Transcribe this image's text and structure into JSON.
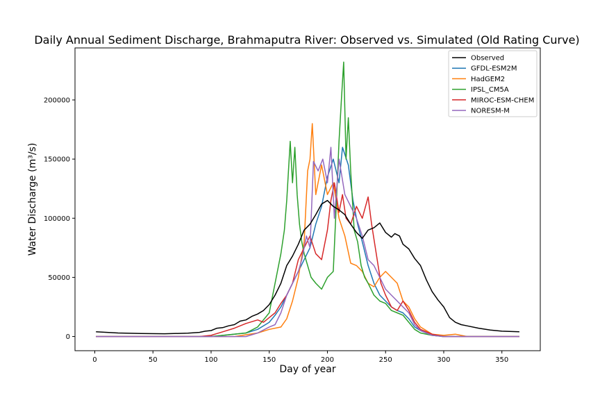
{
  "chart_data": {
    "type": "line",
    "title": "Daily Annual Sediment Discharge, Brahmaputra River: Observed vs. Simulated (Old Rating Curve)",
    "xlabel": "Day of year",
    "ylabel": "Water Discharge (m³/s)",
    "xlim": [
      -17,
      383
    ],
    "ylim": [
      -12000,
      244000
    ],
    "xticks": [
      0,
      50,
      100,
      150,
      200,
      250,
      300,
      350
    ],
    "yticks": [
      0,
      50000,
      100000,
      150000,
      200000
    ],
    "legend_position": "top-right",
    "grid": false,
    "series": [
      {
        "name": "Observed",
        "color": "#000000",
        "x": [
          1,
          20,
          40,
          60,
          80,
          90,
          95,
          100,
          105,
          110,
          115,
          120,
          125,
          130,
          135,
          140,
          145,
          150,
          155,
          160,
          165,
          170,
          175,
          180,
          185,
          190,
          195,
          200,
          205,
          210,
          215,
          220,
          225,
          230,
          235,
          240,
          245,
          250,
          255,
          258,
          262,
          265,
          270,
          275,
          280,
          285,
          290,
          295,
          300,
          305,
          310,
          315,
          320,
          330,
          340,
          350,
          365
        ],
        "y": [
          4000,
          3000,
          2500,
          2300,
          2800,
          3500,
          4500,
          5000,
          7000,
          7500,
          9000,
          10000,
          13000,
          14000,
          17000,
          19000,
          22000,
          27000,
          35000,
          45000,
          60000,
          68000,
          78000,
          90000,
          95000,
          103000,
          112000,
          115000,
          110000,
          107000,
          103000,
          95000,
          88000,
          83000,
          90000,
          92000,
          96000,
          88000,
          84000,
          87000,
          85000,
          78000,
          74000,
          66000,
          60000,
          48000,
          38000,
          31000,
          25000,
          16000,
          12000,
          10000,
          9000,
          7000,
          5500,
          4500,
          4000
        ]
      },
      {
        "name": "GFDL-ESM2M",
        "color": "#1f77b4",
        "x": [
          1,
          100,
          120,
          130,
          140,
          150,
          155,
          160,
          165,
          170,
          175,
          180,
          185,
          190,
          195,
          200,
          205,
          210,
          213,
          218,
          222,
          226,
          230,
          235,
          240,
          245,
          250,
          255,
          260,
          265,
          270,
          275,
          280,
          290,
          300,
          320,
          365
        ],
        "y": [
          0,
          0,
          2000,
          3000,
          6000,
          12000,
          18000,
          25000,
          35000,
          45000,
          55000,
          65000,
          75000,
          95000,
          110000,
          135000,
          150000,
          130000,
          160000,
          145000,
          115000,
          95000,
          80000,
          60000,
          45000,
          35000,
          30000,
          25000,
          22000,
          20000,
          15000,
          8000,
          5000,
          1000,
          0,
          0,
          0
        ]
      },
      {
        "name": "HadGEM2",
        "color": "#ff7f0e",
        "x": [
          1,
          120,
          140,
          150,
          160,
          165,
          170,
          175,
          180,
          183,
          185,
          187,
          190,
          195,
          200,
          205,
          210,
          215,
          220,
          225,
          230,
          235,
          240,
          245,
          250,
          255,
          260,
          265,
          270,
          275,
          280,
          290,
          300,
          310,
          320,
          365
        ],
        "y": [
          0,
          0,
          3000,
          6000,
          8000,
          15000,
          30000,
          50000,
          80000,
          140000,
          150000,
          180000,
          120000,
          145000,
          120000,
          130000,
          100000,
          85000,
          62000,
          60000,
          55000,
          45000,
          42000,
          50000,
          55000,
          50000,
          45000,
          30000,
          25000,
          15000,
          8000,
          2000,
          1000,
          2000,
          0,
          0
        ]
      },
      {
        "name": "IPSL_CM5A",
        "color": "#2ca02c",
        "x": [
          1,
          100,
          130,
          140,
          150,
          155,
          160,
          163,
          165,
          168,
          170,
          172,
          174,
          176,
          178,
          180,
          183,
          186,
          190,
          195,
          200,
          205,
          208,
          210,
          212,
          214,
          216,
          218,
          220,
          223,
          226,
          229,
          232,
          235,
          240,
          245,
          250,
          255,
          260,
          265,
          270,
          275,
          280,
          290,
          300,
          365
        ],
        "y": [
          0,
          0,
          3000,
          8000,
          20000,
          45000,
          70000,
          90000,
          115000,
          165000,
          130000,
          160000,
          120000,
          95000,
          80000,
          70000,
          60000,
          50000,
          45000,
          40000,
          50000,
          55000,
          120000,
          165000,
          200000,
          232000,
          150000,
          185000,
          140000,
          90000,
          80000,
          60000,
          50000,
          45000,
          35000,
          30000,
          28000,
          22000,
          20000,
          18000,
          12000,
          6000,
          3000,
          1000,
          0,
          0
        ]
      },
      {
        "name": "MIROC-ESM-CHEM",
        "color": "#d62728",
        "x": [
          1,
          90,
          100,
          110,
          120,
          130,
          140,
          145,
          150,
          155,
          160,
          165,
          170,
          175,
          180,
          185,
          190,
          195,
          200,
          203,
          206,
          210,
          213,
          216,
          220,
          225,
          230,
          235,
          238,
          242,
          246,
          250,
          255,
          260,
          265,
          270,
          275,
          280,
          290,
          300,
          365
        ],
        "y": [
          0,
          0,
          1000,
          4000,
          7000,
          11000,
          14000,
          12000,
          16000,
          20000,
          28000,
          35000,
          45000,
          65000,
          75000,
          85000,
          70000,
          65000,
          90000,
          115000,
          130000,
          105000,
          120000,
          100000,
          95000,
          110000,
          100000,
          118000,
          95000,
          70000,
          45000,
          35000,
          25000,
          22000,
          30000,
          22000,
          12000,
          6000,
          2000,
          0,
          0
        ]
      },
      {
        "name": "NORESM-M",
        "color": "#9467bd",
        "x": [
          1,
          130,
          140,
          150,
          155,
          160,
          165,
          170,
          175,
          178,
          182,
          185,
          188,
          192,
          196,
          200,
          203,
          206,
          210,
          215,
          220,
          225,
          230,
          235,
          240,
          245,
          250,
          255,
          260,
          265,
          270,
          275,
          280,
          290,
          300,
          365
        ],
        "y": [
          0,
          0,
          3000,
          8000,
          10000,
          20000,
          35000,
          45000,
          55000,
          65000,
          85000,
          75000,
          148000,
          140000,
          150000,
          130000,
          160000,
          100000,
          150000,
          120000,
          110000,
          100000,
          85000,
          65000,
          60000,
          50000,
          40000,
          35000,
          30000,
          25000,
          20000,
          10000,
          5000,
          1000,
          0,
          0
        ]
      }
    ]
  }
}
